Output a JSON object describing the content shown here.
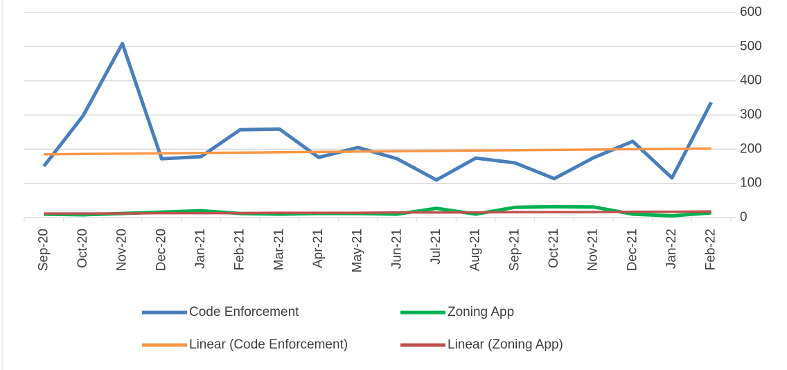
{
  "chart_data": {
    "type": "line",
    "categories": [
      "Sep-20",
      "Oct-20",
      "Nov-20",
      "Dec-20",
      "Jan-21",
      "Feb-21",
      "Mar-21",
      "Apr-21",
      "May-21",
      "Jun-21",
      "Jul-21",
      "Aug-21",
      "Sep-21",
      "Oct-21",
      "Nov-21",
      "Dec-21",
      "Jan-22",
      "Feb-22"
    ],
    "series": [
      {
        "name": "Code Enforcement",
        "color": "#4a7ebb",
        "values": [
          150,
          298,
          509,
          172,
          178,
          257,
          259,
          176,
          205,
          172,
          110,
          174,
          160,
          114,
          175,
          223,
          116,
          337
        ]
      },
      {
        "name": "Zoning App",
        "color": "#00b050",
        "values": [
          10,
          8,
          12,
          16,
          20,
          12,
          10,
          12,
          12,
          10,
          27,
          10,
          30,
          32,
          31,
          10,
          5,
          14
        ]
      },
      {
        "name": "Linear (Code Enforcement)",
        "color": "#f79646",
        "values": [
          185,
          186,
          187,
          188,
          189,
          190,
          191,
          192,
          193,
          194,
          195,
          196,
          197,
          198,
          199,
          200,
          201,
          202
        ]
      },
      {
        "name": "Linear (Zoning App)",
        "color": "#c0504d",
        "values": [
          12,
          12,
          12,
          13,
          13,
          13,
          14,
          14,
          14,
          15,
          15,
          15,
          16,
          16,
          16,
          17,
          17,
          18
        ]
      }
    ],
    "ylim": [
      0,
      600
    ],
    "yticks": [
      0,
      100,
      200,
      300,
      400,
      500,
      600
    ],
    "grid": true,
    "legend": "bottom"
  }
}
